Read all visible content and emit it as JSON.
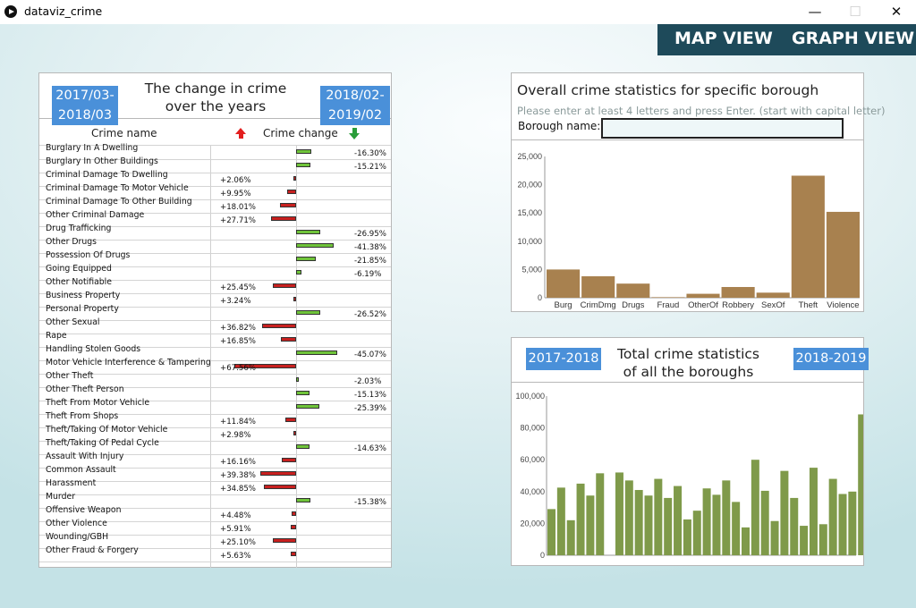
{
  "window": {
    "title": "dataviz_crime",
    "minimize": "—",
    "maximize": "☐",
    "close": "✕"
  },
  "views": {
    "map": "MAP VIEW",
    "graph": "GRAPH VIEW"
  },
  "change_panel": {
    "left_period": [
      "2017/03-",
      "2018/03"
    ],
    "right_period": [
      "2018/02-",
      "2019/02"
    ],
    "title": [
      "The change in crime",
      "over the years"
    ],
    "col_name": "Crime name",
    "col_change": "Crime change",
    "rows": [
      {
        "name": "Burglary In A Dwelling",
        "change": -16.3,
        "label": "-16.30%"
      },
      {
        "name": "Burglary In Other Buildings",
        "change": -15.21,
        "label": "-15.21%"
      },
      {
        "name": "Criminal Damage To Dwelling",
        "change": 2.06,
        "label": "+2.06%"
      },
      {
        "name": "Criminal Damage To Motor Vehicle",
        "change": 9.95,
        "label": "+9.95%"
      },
      {
        "name": "Criminal Damage To Other Building",
        "change": 18.01,
        "label": "+18.01%"
      },
      {
        "name": "Other Criminal Damage",
        "change": 27.71,
        "label": "+27.71%"
      },
      {
        "name": "Drug Trafficking",
        "change": -26.95,
        "label": "-26.95%"
      },
      {
        "name": "Other Drugs",
        "change": -41.38,
        "label": "-41.38%"
      },
      {
        "name": "Possession Of Drugs",
        "change": -21.85,
        "label": "-21.85%"
      },
      {
        "name": "Going Equipped",
        "change": -6.19,
        "label": "-6.19%"
      },
      {
        "name": "Other Notifiable",
        "change": 25.45,
        "label": "+25.45%"
      },
      {
        "name": "Business Property",
        "change": 3.24,
        "label": "+3.24%"
      },
      {
        "name": "Personal Property",
        "change": -26.52,
        "label": "-26.52%"
      },
      {
        "name": "Other Sexual",
        "change": 36.82,
        "label": "+36.82%"
      },
      {
        "name": "Rape",
        "change": 16.85,
        "label": "+16.85%"
      },
      {
        "name": "Handling Stolen Goods",
        "change": -45.07,
        "label": "-45.07%"
      },
      {
        "name": "Motor Vehicle Interference & Tampering",
        "change": 67.56,
        "label": "+67.56%"
      },
      {
        "name": "Other Theft",
        "change": -2.03,
        "label": "-2.03%"
      },
      {
        "name": "Other Theft Person",
        "change": -15.13,
        "label": "-15.13%"
      },
      {
        "name": "Theft From Motor Vehicle",
        "change": -25.39,
        "label": "-25.39%"
      },
      {
        "name": "Theft From Shops",
        "change": 11.84,
        "label": "+11.84%"
      },
      {
        "name": "Theft/Taking Of Motor Vehicle",
        "change": 2.98,
        "label": "+2.98%"
      },
      {
        "name": "Theft/Taking Of Pedal Cycle",
        "change": -14.63,
        "label": "-14.63%"
      },
      {
        "name": "Assault With Injury",
        "change": 16.16,
        "label": "+16.16%"
      },
      {
        "name": "Common Assault",
        "change": 39.38,
        "label": "+39.38%"
      },
      {
        "name": "Harassment",
        "change": 34.85,
        "label": "+34.85%"
      },
      {
        "name": "Murder",
        "change": -15.38,
        "label": "-15.38%"
      },
      {
        "name": "Offensive Weapon",
        "change": 4.48,
        "label": "+4.48%"
      },
      {
        "name": "Other Violence",
        "change": 5.91,
        "label": "+5.91%"
      },
      {
        "name": "Wounding/GBH",
        "change": 25.1,
        "label": "+25.10%"
      },
      {
        "name": "Other Fraud & Forgery",
        "change": 5.63,
        "label": "+5.63%"
      }
    ]
  },
  "borough_panel": {
    "title": "Overall crime statistics for specific borough",
    "hint": "Please enter at least 4 letters and press Enter. (start with capital letter)",
    "label": "Borough name:",
    "value": ""
  },
  "total_panel": {
    "left_btn": "2017-2018",
    "right_btn": "2018-2019",
    "title": [
      "Total crime statistics",
      "of all the boroughs"
    ]
  },
  "colors": {
    "brown": "#a8814f",
    "olive": "#7f9a4a",
    "navy": "#1e4a5a",
    "blue": "#4a90d9"
  },
  "chart_data": [
    {
      "type": "bar",
      "title": "Overall crime statistics for specific borough",
      "categories": [
        "Burg",
        "CrimDmg",
        "Drugs",
        "Fraud",
        "OtherOf",
        "Robbery",
        "SexOf",
        "Theft",
        "Violence"
      ],
      "values": [
        5000,
        3800,
        2500,
        100,
        700,
        1900,
        900,
        21600,
        15200
      ],
      "yticks": [
        "25,000",
        "20,000",
        "15,000",
        "10,000",
        "5,000",
        "0"
      ],
      "ylim": [
        0,
        25000
      ]
    },
    {
      "type": "bar",
      "title": "Total crime statistics of all the boroughs",
      "values": [
        29000,
        42500,
        22000,
        45000,
        37500,
        51500,
        0,
        52000,
        47000,
        41000,
        37500,
        48000,
        36000,
        43500,
        22500,
        28000,
        42000,
        38000,
        47000,
        33500,
        17500,
        60000,
        40500,
        21500,
        53000,
        36000,
        18500,
        55000,
        19500,
        48000,
        38500,
        40000,
        88500
      ],
      "yticks": [
        "100,000",
        "80,000",
        "60,000",
        "40,000",
        "20,000",
        "0"
      ],
      "ylim": [
        0,
        100000
      ]
    }
  ]
}
